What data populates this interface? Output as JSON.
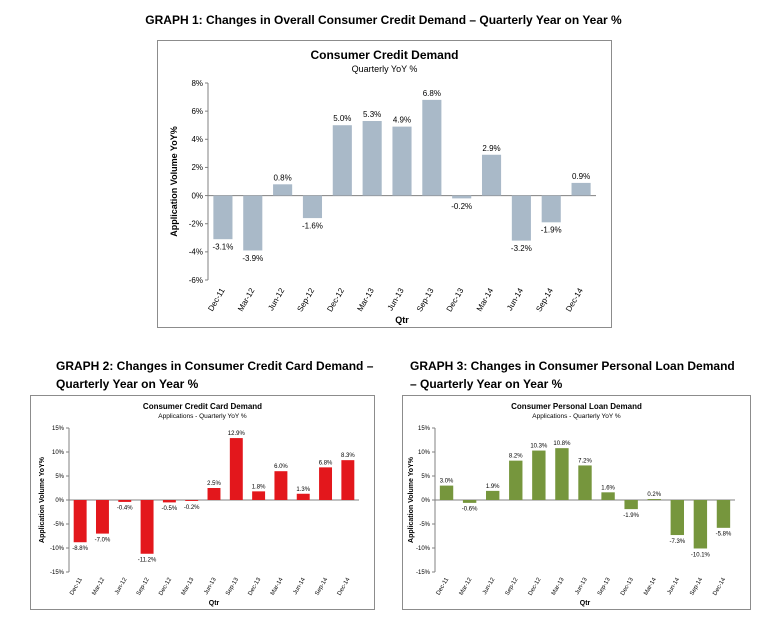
{
  "headings": {
    "graph1": "GRAPH 1: Changes in Overall Consumer Credit Demand – Quarterly Year on Year %",
    "graph2_line1": "GRAPH 2: Changes in Consumer Credit Card Demand –",
    "graph2_line2": "Quarterly Year on Year %",
    "graph3_line1": "GRAPH 3: Changes in Consumer Personal Loan Demand",
    "graph3_line2": "– Quarterly Year on Year %"
  },
  "chart_data": [
    {
      "type": "bar",
      "title": "Consumer Credit Demand",
      "subtitle": "Quarterly YoY %",
      "xlabel": "Qtr",
      "ylabel": "Application Volume YoY%",
      "color": "#a9b9c8",
      "categories": [
        "Dec-11",
        "Mar-12",
        "Jun-12",
        "Sep-12",
        "Dec-12",
        "Mar-13",
        "Jun-13",
        "Sep-13",
        "Dec-13",
        "Mar-14",
        "Jun-14",
        "Sep-14",
        "Dec-14"
      ],
      "values": [
        -3.1,
        -3.9,
        0.8,
        -1.6,
        5.0,
        5.3,
        4.9,
        6.8,
        -0.2,
        2.9,
        -3.2,
        -1.9,
        0.9
      ],
      "value_labels": [
        "-3.1%",
        "-3.9%",
        "0.8%",
        "-1.6%",
        "5.0%",
        "5.3%",
        "4.9%",
        "6.8%",
        "-0.2%",
        "2.9%",
        "-3.2%",
        "-1.9%",
        "0.9%"
      ],
      "yticks": [
        -6,
        -4,
        -2,
        0,
        2,
        4,
        6,
        8
      ],
      "ytick_labels": [
        "-6%",
        "-4%",
        "-2%",
        "0%",
        "2%",
        "4%",
        "6%",
        "8%"
      ],
      "ylim": [
        -6,
        8
      ],
      "grid": false,
      "legend": "none"
    },
    {
      "type": "bar",
      "title": "Consumer Credit Card Demand",
      "subtitle": "Applications - Quarterly YoY %",
      "xlabel": "Qtr",
      "ylabel": "Application Volume YoY%",
      "color": "#e3171c",
      "categories": [
        "Dec-11",
        "Mar-12",
        "Jun-12",
        "Sep-12",
        "Dec-12",
        "Mar-13",
        "Jun-13",
        "Sep-13",
        "Dec-13",
        "Mar-14",
        "Jun-14",
        "Sep-14",
        "Dec-14"
      ],
      "values": [
        -8.8,
        -7.0,
        -0.4,
        -11.2,
        -0.5,
        -0.2,
        2.5,
        12.9,
        1.8,
        6.0,
        1.3,
        6.8,
        8.3
      ],
      "value_labels": [
        "-8.8%",
        "-7.0%",
        "-0.4%",
        "-11.2%",
        "-0.5%",
        "-0.2%",
        "2.5%",
        "12.9%",
        "1.8%",
        "6.0%",
        "1.3%",
        "6.8%",
        "8.3%"
      ],
      "yticks": [
        -15,
        -10,
        -5,
        0,
        5,
        10,
        15
      ],
      "ytick_labels": [
        "-15%",
        "-10%",
        "-5%",
        "0%",
        "5%",
        "10%",
        "15%"
      ],
      "ylim": [
        -15,
        15
      ],
      "grid": false,
      "legend": "none"
    },
    {
      "type": "bar",
      "title": "Consumer Personal Loan Demand",
      "subtitle": "Applications - Quarterly YoY %",
      "xlabel": "Qtr",
      "ylabel": "Application Volume YoY%",
      "color": "#76963d",
      "categories": [
        "Dec-11",
        "Mar-12",
        "Jun-12",
        "Sep-12",
        "Dec-12",
        "Mar-13",
        "Jun-13",
        "Sep-13",
        "Dec-13",
        "Mar-14",
        "Jun-14",
        "Sep-14",
        "Dec-14"
      ],
      "values": [
        3.0,
        -0.6,
        1.9,
        8.2,
        10.3,
        10.8,
        7.2,
        1.6,
        -1.9,
        0.2,
        -7.3,
        -10.1,
        -5.8
      ],
      "value_labels": [
        "3.0%",
        "-0.6%",
        "1.9%",
        "8.2%",
        "10.3%",
        "10.8%",
        "7.2%",
        "1.6%",
        "-1.9%",
        "0.2%",
        "-7.3%",
        "-10.1%",
        "-5.8%"
      ],
      "yticks": [
        -15,
        -10,
        -5,
        0,
        5,
        10,
        15
      ],
      "ytick_labels": [
        "-15%",
        "-10%",
        "-5%",
        "0%",
        "5%",
        "10%",
        "15%"
      ],
      "ylim": [
        -15,
        15
      ],
      "grid": false,
      "legend": "none"
    }
  ]
}
